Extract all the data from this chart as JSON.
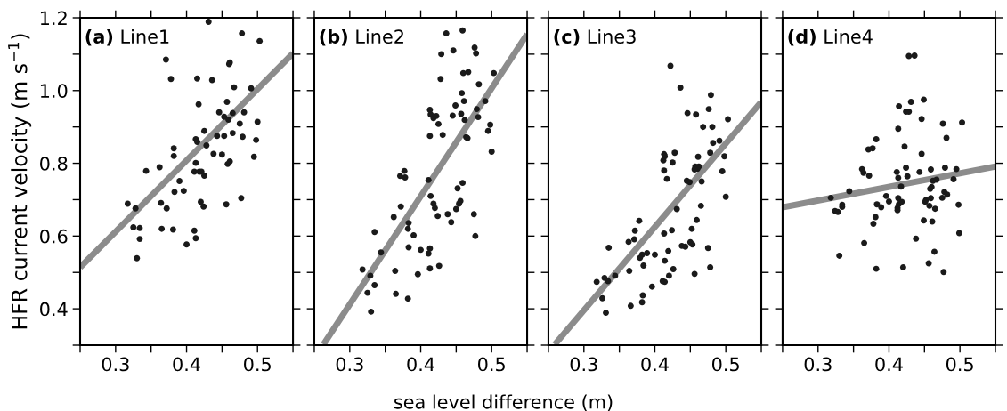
{
  "chart_data": [
    {
      "type": "scatter",
      "title": "(a) Line1",
      "ylabel": "HFR current velocity (m s$^{−1}$)",
      "xlim": [
        0.25,
        0.55
      ],
      "ylim": [
        0.3,
        1.2
      ],
      "xticks": [
        {
          "value": 0.25,
          "label": null
        },
        0.3,
        {
          "value": 0.35,
          "label": null
        },
        0.4,
        {
          "value": 0.45,
          "label": null
        },
        0.5,
        {
          "value": 0.55,
          "label": null
        }
      ],
      "yticks": [
        {
          "value": 0.3,
          "label": null
        },
        0.4,
        {
          "value": 0.5,
          "label": null
        },
        0.6,
        {
          "value": 0.7,
          "label": null
        },
        0.8,
        {
          "value": 0.9,
          "label": null
        },
        {
          "value": 1.0,
          "label": "1.0"
        },
        {
          "value": 1.1,
          "label": null
        },
        1.2
      ],
      "grid": false,
      "marker": "circle",
      "series": [
        {
          "color": "#1a1a1a",
          "x": [
            0.431,
            0.478,
            0.503,
            0.371,
            0.378,
            0.415,
            0.436,
            0.46,
            0.461,
            0.467,
            0.491,
            0.417,
            0.457,
            0.446,
            0.453,
            0.459,
            0.465,
            0.481,
            0.475,
            0.5,
            0.425,
            0.443,
            0.453,
            0.465,
            0.479,
            0.498,
            0.413,
            0.415,
            0.428,
            0.382,
            0.382,
            0.438,
            0.45,
            0.495,
            0.458,
            0.461,
            0.413,
            0.362,
            0.343,
            0.411,
            0.418,
            0.421,
            0.425,
            0.39,
            0.383,
            0.396,
            0.317,
            0.364,
            0.372,
            0.328,
            0.42,
            0.424,
            0.456,
            0.477,
            0.325,
            0.334,
            0.365,
            0.381,
            0.411,
            0.413,
            0.334,
            0.4,
            0.33
          ],
          "values": [
            1.189,
            1.157,
            1.136,
            1.085,
            1.032,
            1.033,
            1.029,
            1.073,
            1.077,
            1.009,
            1.006,
            0.962,
            0.969,
            0.94,
            0.928,
            0.92,
            0.938,
            0.94,
            0.909,
            0.914,
            0.889,
            0.875,
            0.875,
            0.883,
            0.873,
            0.864,
            0.866,
            0.859,
            0.849,
            0.841,
            0.82,
            0.826,
            0.824,
            0.818,
            0.798,
            0.805,
            0.801,
            0.789,
            0.779,
            0.777,
            0.777,
            0.777,
            0.766,
            0.751,
            0.721,
            0.724,
            0.689,
            0.691,
            0.676,
            0.676,
            0.694,
            0.681,
            0.687,
            0.704,
            0.624,
            0.622,
            0.62,
            0.618,
            0.615,
            0.594,
            0.592,
            0.577,
            0.539
          ]
        },
        {
          "type": "line",
          "marker": "none",
          "color": "#8c8c8c",
          "x": [
            0.25,
            0.55
          ],
          "values": [
            0.514,
            1.102
          ]
        }
      ]
    },
    {
      "type": "scatter",
      "title": "(b) Line2",
      "xlabel": "sea level difference (m)",
      "xlim": [
        0.25,
        0.55
      ],
      "ylim": [
        0.3,
        1.2
      ],
      "xticks": [
        {
          "value": 0.25,
          "label": null
        },
        0.3,
        {
          "value": 0.35,
          "label": null
        },
        0.4,
        {
          "value": 0.45,
          "label": null
        },
        0.5,
        {
          "value": 0.55,
          "label": null
        }
      ],
      "yticks": [
        {
          "value": 0.3,
          "label": null
        },
        0.4,
        {
          "value": 0.5,
          "label": null
        },
        0.6,
        {
          "value": 0.7,
          "label": null
        },
        0.8,
        {
          "value": 0.9,
          "label": null
        },
        1.0,
        {
          "value": 1.1,
          "label": null
        },
        1.2
      ],
      "tick_labels": "x",
      "grid": false,
      "marker": "circle",
      "series": [
        {
          "color": "#1a1a1a",
          "x": [
            0.436,
            0.459,
            0.476,
            0.478,
            0.446,
            0.429,
            0.428,
            0.46,
            0.467,
            0.503,
            0.482,
            0.458,
            0.461,
            0.449,
            0.491,
            0.413,
            0.414,
            0.418,
            0.422,
            0.445,
            0.457,
            0.479,
            0.481,
            0.462,
            0.425,
            0.498,
            0.495,
            0.431,
            0.413,
            0.464,
            0.466,
            0.5,
            0.371,
            0.377,
            0.378,
            0.411,
            0.459,
            0.452,
            0.414,
            0.418,
            0.456,
            0.454,
            0.42,
            0.45,
            0.372,
            0.424,
            0.438,
            0.475,
            0.443,
            0.362,
            0.383,
            0.382,
            0.39,
            0.477,
            0.335,
            0.344,
            0.383,
            0.4,
            0.413,
            0.411,
            0.413,
            0.426,
            0.318,
            0.329,
            0.364,
            0.396,
            0.335,
            0.325,
            0.365,
            0.382,
            0.33
          ],
          "values": [
            1.157,
            1.165,
            1.118,
            1.102,
            1.11,
            1.1,
            1.032,
            1.048,
            1.051,
            1.048,
            1.017,
            0.993,
            0.971,
            0.959,
            0.971,
            0.947,
            0.934,
            0.924,
            0.93,
            0.931,
            0.936,
            0.949,
            0.927,
            0.919,
            0.908,
            0.906,
            0.889,
            0.878,
            0.875,
            0.872,
            0.869,
            0.832,
            0.765,
            0.779,
            0.761,
            0.754,
            0.746,
            0.731,
            0.71,
            0.689,
            0.696,
            0.689,
            0.677,
            0.674,
            0.681,
            0.655,
            0.66,
            0.66,
            0.638,
            0.652,
            0.636,
            0.62,
            0.602,
            0.6,
            0.611,
            0.555,
            0.569,
            0.562,
            0.566,
            0.552,
            0.511,
            0.518,
            0.508,
            0.491,
            0.504,
            0.495,
            0.465,
            0.444,
            0.441,
            0.428,
            0.392
          ]
        },
        {
          "type": "line",
          "marker": "none",
          "color": "#8c8c8c",
          "x": [
            0.263,
            0.55
          ],
          "values": [
            0.302,
            1.155
          ]
        }
      ]
    },
    {
      "type": "scatter",
      "title": "(c) Line3",
      "xlim": [
        0.25,
        0.55
      ],
      "ylim": [
        0.3,
        1.2
      ],
      "xticks": [
        {
          "value": 0.25,
          "label": null
        },
        0.3,
        {
          "value": 0.35,
          "label": null
        },
        0.4,
        {
          "value": 0.45,
          "label": null
        },
        0.5,
        {
          "value": 0.55,
          "label": null
        }
      ],
      "yticks": [
        {
          "value": 0.3,
          "label": null
        },
        0.4,
        {
          "value": 0.5,
          "label": null
        },
        0.6,
        {
          "value": 0.7,
          "label": null
        },
        0.8,
        {
          "value": 0.9,
          "label": null
        },
        1.0,
        {
          "value": 1.1,
          "label": null
        },
        1.2
      ],
      "tick_labels": "x",
      "grid": false,
      "marker": "circle",
      "series": [
        {
          "color": "#1a1a1a",
          "x": [
            0.422,
            0.436,
            0.479,
            0.446,
            0.458,
            0.476,
            0.468,
            0.481,
            0.503,
            0.491,
            0.482,
            0.413,
            0.414,
            0.412,
            0.428,
            0.425,
            0.413,
            0.417,
            0.461,
            0.478,
            0.498,
            0.457,
            0.46,
            0.462,
            0.456,
            0.495,
            0.445,
            0.449,
            0.466,
            0.5,
            0.431,
            0.465,
            0.459,
            0.378,
            0.372,
            0.371,
            0.363,
            0.413,
            0.424,
            0.452,
            0.438,
            0.443,
            0.45,
            0.453,
            0.475,
            0.335,
            0.382,
            0.389,
            0.379,
            0.4,
            0.419,
            0.414,
            0.384,
            0.364,
            0.426,
            0.42,
            0.478,
            0.456,
            0.344,
            0.329,
            0.334,
            0.318,
            0.411,
            0.414,
            0.396,
            0.326,
            0.383,
            0.382,
            0.366,
            0.331
          ],
          "values": [
            1.068,
            1.008,
            0.988,
            0.938,
            0.934,
            0.949,
            0.9,
            0.9,
            0.921,
            0.862,
            0.856,
            0.825,
            0.819,
            0.808,
            0.829,
            0.802,
            0.78,
            0.757,
            0.818,
            0.829,
            0.819,
            0.791,
            0.785,
            0.791,
            0.783,
            0.778,
            0.752,
            0.748,
            0.75,
            0.708,
            0.674,
            0.683,
            0.644,
            0.642,
            0.615,
            0.591,
            0.584,
            0.607,
            0.616,
            0.62,
            0.573,
            0.571,
            0.583,
            0.577,
            0.567,
            0.568,
            0.549,
            0.553,
            0.54,
            0.549,
            0.559,
            0.532,
            0.519,
            0.504,
            0.509,
            0.491,
            0.514,
            0.496,
            0.491,
            0.485,
            0.476,
            0.474,
            0.476,
            0.474,
            0.461,
            0.429,
            0.437,
            0.418,
            0.408,
            0.389
          ]
        },
        {
          "type": "line",
          "marker": "none",
          "color": "#8c8c8c",
          "x": [
            0.259,
            0.55
          ],
          "values": [
            0.302,
            0.969
          ]
        }
      ]
    },
    {
      "type": "scatter",
      "title": "(d) Line4",
      "xlim": [
        0.25,
        0.55
      ],
      "ylim": [
        0.3,
        1.2
      ],
      "xticks": [
        {
          "value": 0.25,
          "label": null
        },
        0.3,
        {
          "value": 0.35,
          "label": null
        },
        0.4,
        {
          "value": 0.45,
          "label": null
        },
        0.5,
        {
          "value": 0.55,
          "label": null
        }
      ],
      "yticks": [
        {
          "value": 0.3,
          "label": null
        },
        0.4,
        {
          "value": 0.5,
          "label": null
        },
        0.6,
        {
          "value": 0.7,
          "label": null
        },
        0.8,
        {
          "value": 0.9,
          "label": null
        },
        1.0,
        {
          "value": 1.1,
          "label": null
        },
        1.2
      ],
      "tick_labels": "x",
      "grid": false,
      "marker": "circle",
      "series": [
        {
          "color": "#1a1a1a",
          "x": [
            0.428,
            0.436,
            0.449,
            0.431,
            0.414,
            0.424,
            0.428,
            0.446,
            0.476,
            0.503,
            0.413,
            0.481,
            0.382,
            0.371,
            0.377,
            0.422,
            0.446,
            0.362,
            0.364,
            0.372,
            0.411,
            0.413,
            0.424,
            0.426,
            0.443,
            0.459,
            0.479,
            0.495,
            0.491,
            0.462,
            0.467,
            0.417,
            0.46,
            0.458,
            0.344,
            0.318,
            0.396,
            0.4,
            0.413,
            0.459,
            0.452,
            0.451,
            0.478,
            0.482,
            0.475,
            0.324,
            0.328,
            0.334,
            0.334,
            0.383,
            0.389,
            0.414,
            0.418,
            0.412,
            0.412,
            0.457,
            0.465,
            0.498,
            0.381,
            0.378,
            0.449,
            0.461,
            0.499,
            0.438,
            0.365,
            0.464,
            0.33,
            0.456,
            0.382,
            0.42,
            0.477
          ],
          "values": [
            1.095,
            1.096,
            0.975,
            0.969,
            0.957,
            0.942,
            0.942,
            0.922,
            0.909,
            0.912,
            0.895,
            0.87,
            0.866,
            0.838,
            0.841,
            0.846,
            0.826,
            0.784,
            0.774,
            0.766,
            0.776,
            0.76,
            0.788,
            0.764,
            0.776,
            0.783,
            0.788,
            0.784,
            0.756,
            0.752,
            0.755,
            0.736,
            0.735,
            0.73,
            0.723,
            0.705,
            0.71,
            0.695,
            0.704,
            0.704,
            0.699,
            0.694,
            0.721,
            0.714,
            0.705,
            0.669,
            0.666,
            0.686,
            0.68,
            0.687,
            0.679,
            0.688,
            0.694,
            0.677,
            0.671,
            0.683,
            0.675,
            0.686,
            0.652,
            0.634,
            0.643,
            0.64,
            0.608,
            0.593,
            0.581,
            0.557,
            0.546,
            0.525,
            0.51,
            0.514,
            0.501
          ]
        },
        {
          "type": "line",
          "marker": "none",
          "color": "#8c8c8c",
          "x": [
            0.25,
            0.55
          ],
          "values": [
            0.679,
            0.791
          ]
        }
      ]
    }
  ]
}
